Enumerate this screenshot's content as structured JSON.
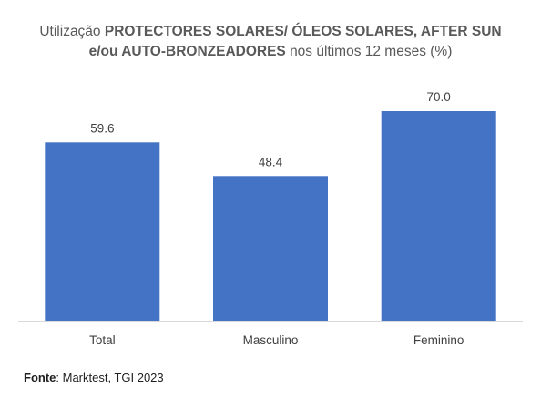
{
  "title": {
    "line1_light": "Utilização ",
    "line1_bold": "PROTECTORES SOLARES/ ÓLEOS SOLARES, AFTER SUN",
    "line2_bold": "e/ou AUTO-BRONZEADORES ",
    "line2_light": "nos últimos 12 meses (%)"
  },
  "source": {
    "label": "Fonte",
    "text": ": Marktest, TGI 2023"
  },
  "colors": {
    "bar": "#4472C4",
    "axis": "#D9D9D9",
    "label": "#404040"
  },
  "chart_data": {
    "type": "bar",
    "categories": [
      "Total",
      "Masculino",
      "Feminino"
    ],
    "values": [
      59.6,
      48.4,
      70.0
    ],
    "value_labels": [
      "59.6",
      "48.4",
      "70.0"
    ],
    "ylim": [
      0,
      70
    ],
    "grid": false,
    "legend": "none"
  }
}
